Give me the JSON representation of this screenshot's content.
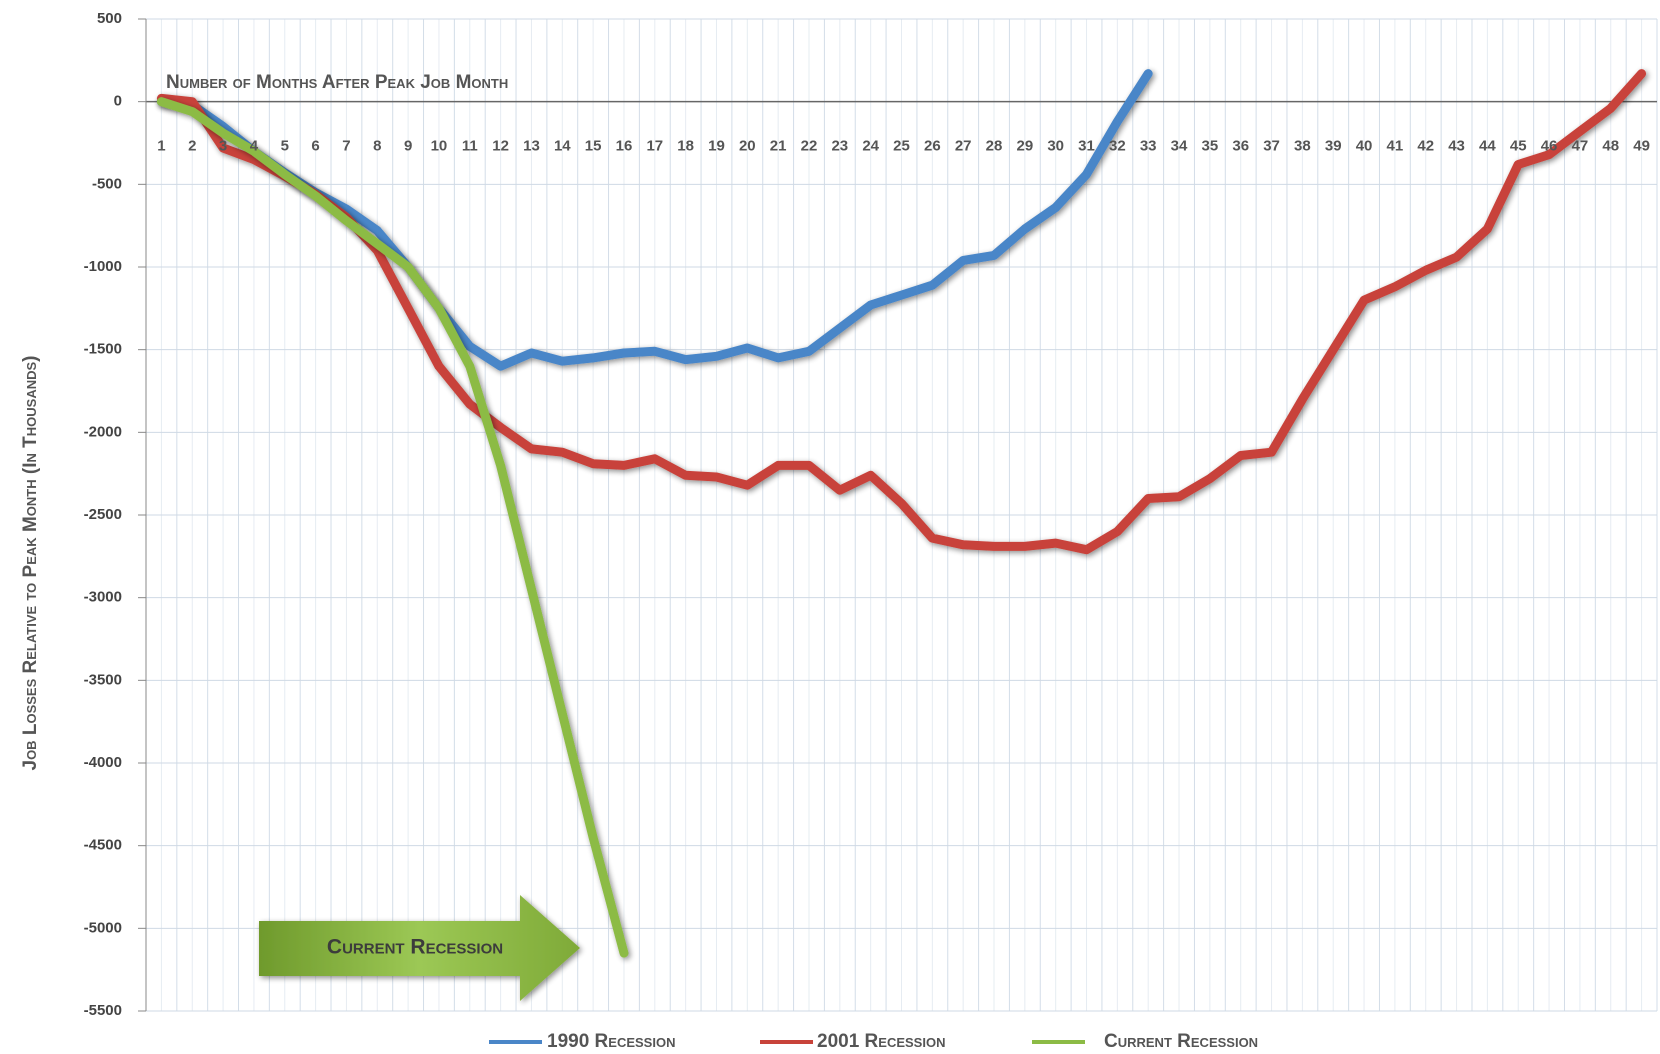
{
  "chart_data": {
    "type": "line",
    "x_label": "Number of Months After Peak Job Month",
    "y_label": "Job Losses Relative to Peak Month (In Thousands)",
    "annotation": "Current Recession",
    "categories": [
      "1",
      "2",
      "3",
      "4",
      "5",
      "6",
      "7",
      "8",
      "9",
      "10",
      "11",
      "12",
      "13",
      "14",
      "15",
      "16",
      "17",
      "18",
      "19",
      "20",
      "21",
      "22",
      "23",
      "24",
      "25",
      "26",
      "27",
      "28",
      "29",
      "30",
      "31",
      "32",
      "33",
      "34",
      "35",
      "36",
      "37",
      "38",
      "39",
      "40",
      "41",
      "42",
      "43",
      "44",
      "45",
      "46",
      "47",
      "48",
      "49"
    ],
    "series": [
      {
        "name": "1990 Recession",
        "color": "#4a86c8",
        "values": [
          0,
          -20,
          -150,
          -300,
          -430,
          -550,
          -650,
          -780,
          -1000,
          -1250,
          -1480,
          -1600,
          -1520,
          -1570,
          -1550,
          -1520,
          -1510,
          -1560,
          -1540,
          -1490,
          -1550,
          -1510,
          -1370,
          -1230,
          -1170,
          -1110,
          -960,
          -930,
          -770,
          -640,
          -440,
          -120,
          170,
          null,
          null,
          null,
          null,
          null,
          null,
          null,
          null,
          null,
          null,
          null,
          null,
          null,
          null,
          null,
          null
        ]
      },
      {
        "name": "2001 Recession",
        "color": "#c8433a",
        "values": [
          20,
          0,
          -280,
          -350,
          -450,
          -560,
          -700,
          -900,
          -1250,
          -1600,
          -1830,
          -1970,
          -2100,
          -2120,
          -2190,
          -2200,
          -2160,
          -2260,
          -2270,
          -2320,
          -2200,
          -2200,
          -2350,
          -2260,
          -2430,
          -2640,
          -2680,
          -2690,
          -2690,
          -2670,
          -2710,
          -2600,
          -2400,
          -2390,
          -2280,
          -2140,
          -2120,
          -1800,
          -1500,
          -1200,
          -1120,
          -1020,
          -940,
          -770,
          -380,
          -320,
          -180,
          -40,
          170
        ]
      },
      {
        "name": "Current Recession",
        "color": "#8cbb45",
        "values": [
          0,
          -60,
          -190,
          -300,
          -440,
          -570,
          -720,
          -860,
          -1000,
          -1250,
          -1600,
          -2200,
          -2950,
          -3700,
          -4450,
          -5150,
          null,
          null,
          null,
          null,
          null,
          null,
          null,
          null,
          null,
          null,
          null,
          null,
          null,
          null,
          null,
          null,
          null,
          null,
          null,
          null,
          null,
          null,
          null,
          null,
          null,
          null,
          null,
          null,
          null,
          null,
          null,
          null,
          null
        ]
      }
    ],
    "ylim": [
      -5500,
      500
    ],
    "yticks": [
      -5500,
      -5000,
      -4500,
      -4000,
      -3500,
      -3000,
      -2500,
      -2000,
      -1500,
      -1000,
      -500,
      0,
      500
    ],
    "grid": true
  }
}
